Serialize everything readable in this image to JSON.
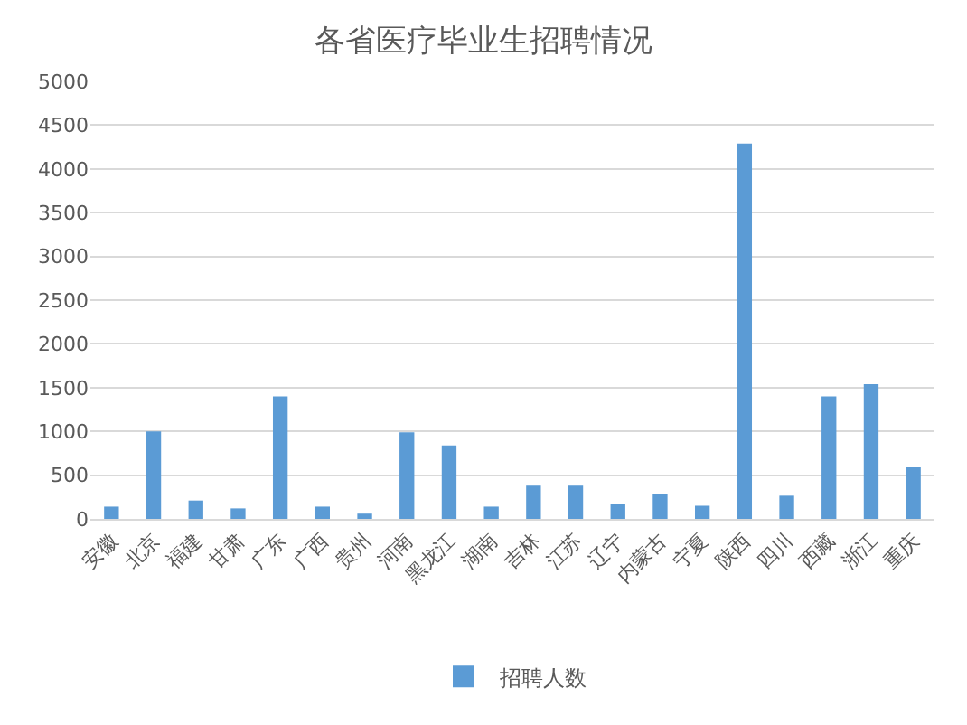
{
  "chart_data": {
    "type": "bar",
    "title": "各省医疗毕业生招聘情况",
    "categories": [
      "安徽",
      "北京",
      "福建",
      "甘肃",
      "广东",
      "广西",
      "贵州",
      "河南",
      "黑龙江",
      "湖南",
      "吉林",
      "江苏",
      "辽宁",
      "内蒙古",
      "宁夏",
      "陕西",
      "四川",
      "西藏",
      "浙江",
      "重庆"
    ],
    "series": [
      {
        "name": "招聘人数",
        "color": "#5b9bd5",
        "values": [
          140,
          1000,
          210,
          120,
          1400,
          140,
          60,
          990,
          840,
          140,
          380,
          380,
          170,
          285,
          150,
          4290,
          265,
          1400,
          1540,
          590
        ]
      }
    ],
    "ylim": [
      0,
      5000
    ],
    "yticks": [
      0,
      500,
      1000,
      1500,
      2000,
      2500,
      3000,
      3500,
      4000,
      4500,
      5000
    ],
    "grid": "y",
    "legend": "bottom"
  }
}
